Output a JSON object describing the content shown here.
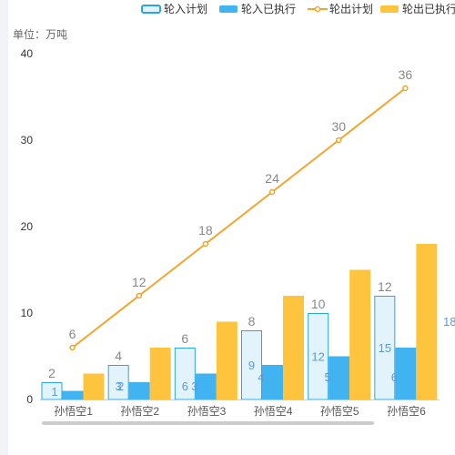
{
  "chart_data": {
    "type": "bar",
    "unit_label": "单位：万吨",
    "categories": [
      "孙悟空1",
      "孙悟空2",
      "孙悟空3",
      "孙悟空4",
      "孙悟空5",
      "孙悟空6"
    ],
    "ylim": [
      0,
      40
    ],
    "yticks": [
      0,
      10,
      20,
      30,
      40
    ],
    "grid": false,
    "legend_position": "top-right",
    "colors": {
      "plan_in_fill": "#e3f3fc",
      "plan_in_stroke": "#2ba5e6",
      "in_executed": "#41b3f0",
      "out_plan_line": "#f1a52c",
      "out_executed": "#ffc43d",
      "axis": "#cccccc"
    },
    "series": [
      {
        "name": "轮入计划",
        "kind": "bar-outline",
        "values": [
          2,
          4,
          6,
          8,
          10,
          12
        ],
        "inner_labels": [
          1,
          3,
          6,
          9,
          12,
          15
        ]
      },
      {
        "name": "轮入已执行",
        "kind": "bar",
        "values": [
          1,
          2,
          3,
          4,
          5,
          6
        ]
      },
      {
        "name": "轮出计划",
        "kind": "line",
        "values": [
          6,
          12,
          18,
          24,
          30,
          36
        ]
      },
      {
        "name": "轮出已执行",
        "kind": "bar",
        "values": [
          3,
          6,
          9,
          12,
          15,
          18
        ]
      }
    ],
    "extra_label": "18"
  }
}
